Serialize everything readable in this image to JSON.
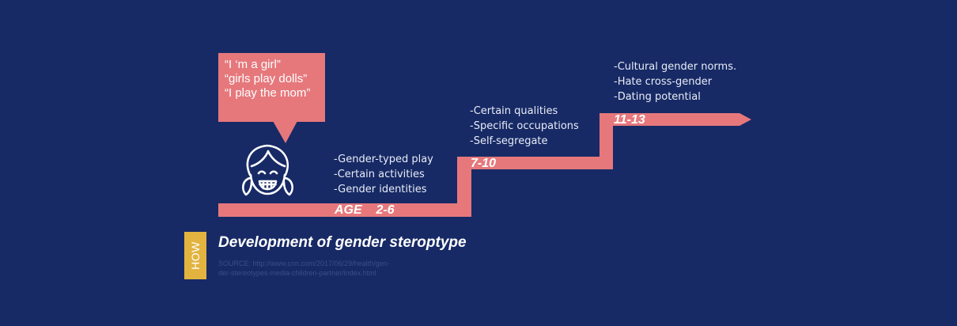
{
  "colors": {
    "background": "#172a66",
    "accent": "#e6787c",
    "how_badge": "#e2b33f",
    "text": "#e9ecf5"
  },
  "bubble": {
    "lines": [
      "“I ‘m a girl”",
      "“girls play dolls”",
      "“I play the mom”"
    ]
  },
  "stages": [
    {
      "age": "AGE    2-6",
      "items": [
        "-Gender-typed play",
        "-Certain  activities",
        "-Gender identities"
      ]
    },
    {
      "age": "7-10",
      "items": [
        "-Certain qualities",
        "-Specific occupations",
        "-Self-segregate"
      ]
    },
    {
      "age": "11-13",
      "items": [
        "-Cultural gender norms.",
        "-Hate cross-gender",
        "-Dating potential"
      ]
    }
  ],
  "footer": {
    "badge": "HOW",
    "title": "Development of gender steroptype",
    "source_lines": [
      "SOURCE: http://www.cnn.com/2017/06/29/health/gen-",
      "der-stereotypes-media-children-partner/index.html"
    ]
  },
  "icons": [
    "girl-face-icon"
  ]
}
